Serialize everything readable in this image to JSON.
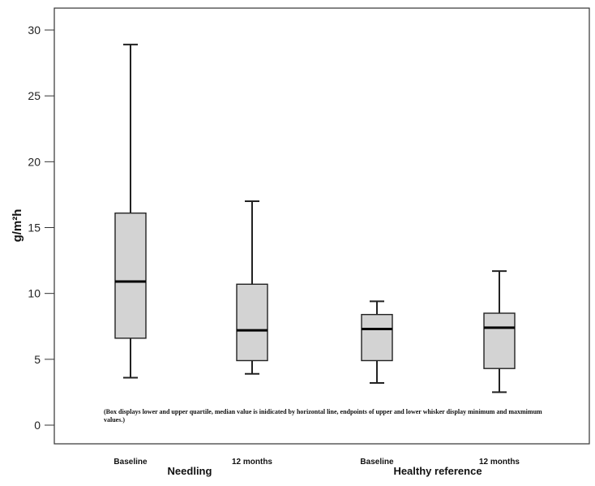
{
  "chart_data": {
    "type": "boxplot",
    "title": "",
    "ylabel": "g/m²h",
    "ylim": [
      0,
      30
    ],
    "yticks": [
      "0",
      "5",
      "10",
      "15",
      "20",
      "25",
      "30"
    ],
    "categories": [
      "Baseline",
      "12 months",
      "Baseline",
      "12 months"
    ],
    "groups": [
      {
        "label": "Needling",
        "categories": [
          0,
          1
        ]
      },
      {
        "label": "Healthy reference",
        "categories": [
          2,
          3
        ]
      }
    ],
    "boxes": [
      {
        "category": "Baseline",
        "group": "Needling",
        "min": 3.6,
        "q1": 6.6,
        "median": 10.9,
        "q3": 16.1,
        "max": 28.9
      },
      {
        "category": "12 months",
        "group": "Needling",
        "min": 3.9,
        "q1": 4.9,
        "median": 7.2,
        "q3": 10.7,
        "max": 17.0
      },
      {
        "category": "Baseline",
        "group": "Healthy reference",
        "min": 3.2,
        "q1": 4.9,
        "median": 7.3,
        "q3": 8.4,
        "max": 9.4
      },
      {
        "category": "12 months",
        "group": "Healthy reference",
        "min": 2.5,
        "q1": 4.3,
        "median": 7.4,
        "q3": 8.5,
        "max": 11.7
      }
    ],
    "box_color": "#d3d3d3",
    "grid": false,
    "note": "(Box displays lower and upper quartile, median value is inidicated by horizontal line, endpoints of upper and lower whisker display minimum and maxmimum values.)"
  }
}
